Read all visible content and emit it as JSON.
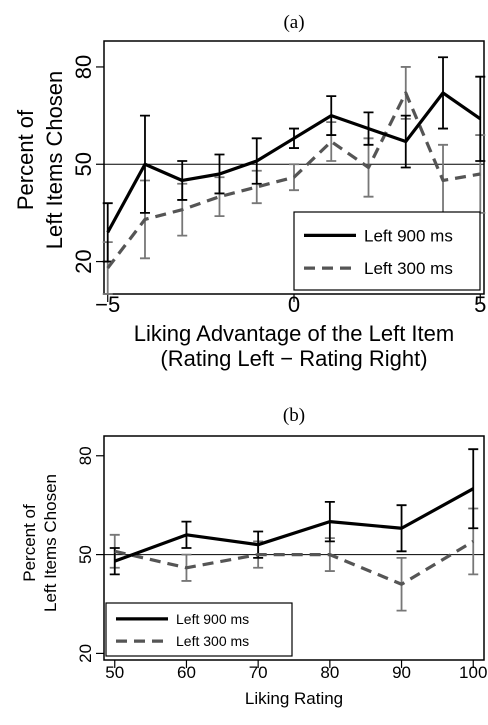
{
  "chart_data": [
    {
      "panel": "(a)",
      "type": "line",
      "xlabel_line1": "Liking Advantage of the Left Item",
      "xlabel_line2": "(Rating Left − Rating Right)",
      "ylabel_line1": "Percent of",
      "ylabel_line2": "Left Items Chosen",
      "xlim": [
        -5.1,
        5.1
      ],
      "ylim": [
        10,
        88
      ],
      "x_ticks": [
        -5,
        0,
        5
      ],
      "x_tick_labels": [
        "−5",
        "0",
        "5"
      ],
      "y_ticks": [
        20,
        50,
        80
      ],
      "y_tick_labels": [
        "20",
        "50",
        "80"
      ],
      "reference_line": 50,
      "legend_position": "bottom-right",
      "x": [
        -5,
        -4,
        -3,
        -2,
        -1,
        0,
        1,
        2,
        3,
        4,
        5
      ],
      "series": [
        {
          "name": "Left 900 ms",
          "color": "#000000",
          "dashed": false,
          "values": [
            29,
            50,
            45,
            47,
            51,
            58,
            65,
            61,
            57,
            72,
            64
          ],
          "errors": [
            9,
            15,
            6,
            6,
            7,
            3,
            6,
            5,
            8,
            11,
            13
          ]
        },
        {
          "name": "Left 300 ms",
          "color": "#555555",
          "dashed": true,
          "values": [
            18,
            33,
            36,
            40,
            43,
            46,
            57,
            49,
            72,
            45,
            47
          ],
          "errors": [
            8,
            12,
            8,
            6,
            5,
            4,
            6,
            9,
            8,
            11,
            12
          ]
        }
      ]
    },
    {
      "panel": "(b)",
      "type": "line",
      "xlabel_line1": "Liking Rating",
      "ylabel_line1": "Percent of",
      "ylabel_line2": "Left Items Chosen",
      "xlim": [
        48.5,
        101.5
      ],
      "ylim": [
        18,
        86
      ],
      "x_ticks": [
        50,
        60,
        70,
        80,
        90,
        100
      ],
      "x_tick_labels": [
        "50",
        "60",
        "70",
        "80",
        "90",
        "100"
      ],
      "y_ticks": [
        20,
        50,
        80
      ],
      "y_tick_labels": [
        "20",
        "50",
        "80"
      ],
      "reference_line": 50,
      "legend_position": "bottom-left",
      "x": [
        50,
        60,
        70,
        80,
        90,
        100
      ],
      "series": [
        {
          "name": "Left 900 ms",
          "color": "#000000",
          "dashed": false,
          "values": [
            48,
            56,
            53,
            60,
            58,
            70
          ],
          "errors": [
            4,
            4,
            4,
            6,
            7,
            12
          ]
        },
        {
          "name": "Left 300 ms",
          "color": "#555555",
          "dashed": true,
          "values": [
            51,
            46,
            50,
            50,
            41,
            54
          ],
          "errors": [
            5,
            4,
            4,
            5,
            8,
            10
          ]
        }
      ]
    }
  ]
}
